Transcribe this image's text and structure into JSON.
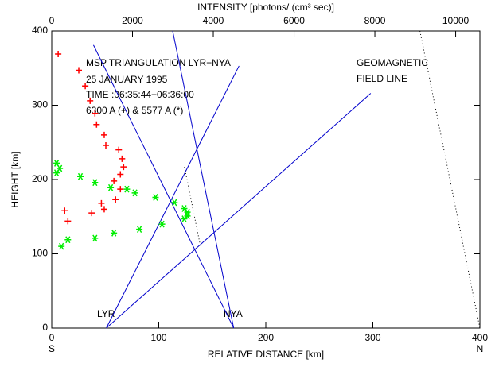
{
  "chart_data": {
    "type": "scatter",
    "xlabel": "RELATIVE DISTANCE [km]",
    "ylabel": "HEIGHT [km]",
    "x2label": "INTENSITY [photons/ (cm³ sec)]",
    "xlim": [
      0,
      400
    ],
    "xticks": [
      0,
      100,
      200,
      300,
      400
    ],
    "ylim": [
      0,
      400
    ],
    "yticks": [
      0,
      100,
      200,
      300,
      400
    ],
    "x2lim": [
      0,
      10600
    ],
    "x2ticks": [
      0,
      2000,
      4000,
      6000,
      8000,
      10000
    ],
    "x_end_labels": [
      "S",
      "N"
    ],
    "annotations": [
      "MSP TRIANGULATION LYR−NYA",
      "25 JANUARY 1995",
      "TIME :06:35:44−06:36:00",
      "6300 A (+) & 5577 A (*)",
      "GEOMAGNETIC",
      "FIELD LINE",
      "LYR",
      "NYA"
    ],
    "series": [
      {
        "color": "#ff0000",
        "marker": "+",
        "axis": "x2",
        "x": [
          160,
          670,
          830,
          950,
          1070,
          1110,
          1300,
          1340,
          1660,
          1740,
          1780,
          1700,
          1540,
          1700,
          1580,
          1230,
          1300,
          990,
          320,
          400
        ],
        "y": [
          369,
          347,
          326,
          306,
          289,
          274,
          260,
          246,
          240,
          228,
          217,
          207,
          198,
          187,
          173,
          168,
          160,
          155,
          158,
          144
        ]
      },
      {
        "color": "#00ee00",
        "marker": "*",
        "axis": "x2",
        "x": [
          120,
          200,
          120,
          710,
          1070,
          1460,
          1860,
          2060,
          2570,
          3040,
          3280,
          3360,
          3360,
          3280,
          2730,
          2170,
          1540,
          1070,
          400,
          240
        ],
        "y": [
          222,
          215,
          209,
          204,
          196,
          189,
          187,
          182,
          176,
          169,
          161,
          156,
          151,
          147,
          140,
          133,
          128,
          121,
          119,
          110
        ]
      }
    ],
    "lines": [
      {
        "color": "#0000cc",
        "style": "solid",
        "x": [
          51,
          298
        ],
        "y": [
          0,
          316
        ]
      },
      {
        "color": "#0000cc",
        "style": "solid",
        "x": [
          51,
          175
        ],
        "y": [
          0,
          353
        ]
      },
      {
        "color": "#0000cc",
        "style": "solid",
        "x": [
          170,
          39
        ],
        "y": [
          0,
          381
        ]
      },
      {
        "color": "#0000cc",
        "style": "solid",
        "x": [
          170,
          113
        ],
        "y": [
          0,
          400
        ]
      },
      {
        "color": "#000000",
        "style": "dotted",
        "x": [
          124,
          139
        ],
        "y": [
          217,
          110
        ]
      },
      {
        "color": "#000000",
        "style": "dotted",
        "x": [
          344,
          400
        ],
        "y": [
          400,
          0
        ]
      }
    ]
  }
}
